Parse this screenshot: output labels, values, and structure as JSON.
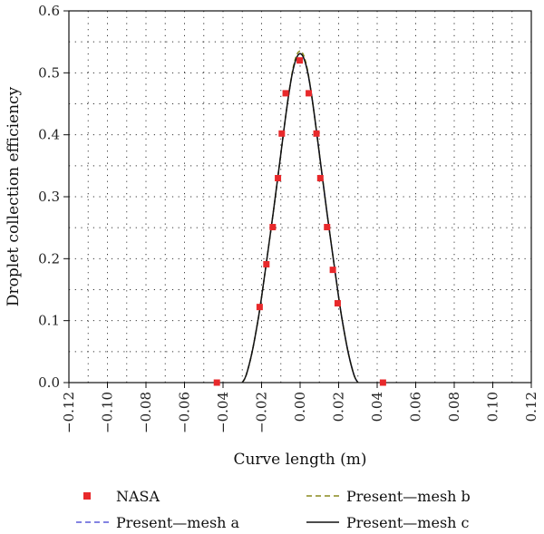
{
  "chart_data": {
    "type": "line",
    "xlabel": "Curve length (m)",
    "ylabel": "Droplet collection efficiency",
    "xlim": [
      -0.12,
      0.12
    ],
    "ylim": [
      0.0,
      0.6
    ],
    "xticks": [
      -0.12,
      -0.1,
      -0.08,
      -0.06,
      -0.04,
      -0.02,
      0.0,
      0.02,
      0.04,
      0.06,
      0.08,
      0.1,
      0.12
    ],
    "xtick_labels": [
      "−0.12",
      "−0.10",
      "−0.08",
      "−0.06",
      "−0.04",
      "−0.02",
      "0.00",
      "0.02",
      "0.04",
      "0.06",
      "0.08",
      "0.10",
      "0.12"
    ],
    "yticks": [
      0.0,
      0.1,
      0.2,
      0.3,
      0.4,
      0.5,
      0.6
    ],
    "ytick_labels": [
      "0.0",
      "0.1",
      "0.2",
      "0.3",
      "0.4",
      "0.5",
      "0.6"
    ],
    "grid": "dotted",
    "series": [
      {
        "name": "NASA",
        "style": "marker",
        "color": "#e8292b",
        "x": [
          -0.0432,
          -0.021,
          -0.0175,
          -0.0142,
          -0.0115,
          -0.0095,
          -0.0075,
          -0.0002,
          0.0045,
          0.0085,
          0.0105,
          0.014,
          0.017,
          0.0195,
          0.043
        ],
        "y": [
          0.0,
          0.122,
          0.191,
          0.251,
          0.33,
          0.402,
          0.467,
          0.52,
          0.467,
          0.402,
          0.33,
          0.251,
          0.182,
          0.128,
          0.0
        ]
      },
      {
        "name": "Present—mesh a",
        "style": "dashed",
        "color": "#5a5ad8",
        "x": [
          -0.03,
          -0.028,
          -0.025,
          -0.022,
          -0.02,
          -0.017,
          -0.014,
          -0.011,
          -0.008,
          -0.006,
          -0.004,
          -0.002,
          0.0,
          0.002,
          0.004,
          0.006,
          0.008,
          0.011,
          0.014,
          0.017,
          0.02,
          0.022,
          0.025,
          0.028,
          0.03
        ],
        "y": [
          0.0,
          0.012,
          0.048,
          0.098,
          0.138,
          0.205,
          0.273,
          0.345,
          0.418,
          0.463,
          0.5,
          0.523,
          0.531,
          0.523,
          0.5,
          0.463,
          0.418,
          0.345,
          0.273,
          0.205,
          0.138,
          0.098,
          0.048,
          0.012,
          0.0
        ]
      },
      {
        "name": "Present—mesh b",
        "style": "dashed",
        "color": "#8a8a1e",
        "x": [
          -0.03,
          -0.028,
          -0.025,
          -0.022,
          -0.02,
          -0.017,
          -0.014,
          -0.011,
          -0.008,
          -0.006,
          -0.004,
          -0.002,
          0.0,
          0.002,
          0.004,
          0.006,
          0.008,
          0.011,
          0.014,
          0.017,
          0.02,
          0.022,
          0.025,
          0.028,
          0.03
        ],
        "y": [
          0.0,
          0.012,
          0.048,
          0.098,
          0.138,
          0.205,
          0.273,
          0.345,
          0.418,
          0.463,
          0.502,
          0.527,
          0.535,
          0.527,
          0.502,
          0.463,
          0.418,
          0.345,
          0.273,
          0.205,
          0.138,
          0.098,
          0.048,
          0.012,
          0.0
        ]
      },
      {
        "name": "Present—mesh c",
        "style": "solid",
        "color": "#111111",
        "x": [
          -0.03,
          -0.028,
          -0.025,
          -0.022,
          -0.02,
          -0.017,
          -0.014,
          -0.011,
          -0.008,
          -0.006,
          -0.004,
          -0.002,
          0.0,
          0.002,
          0.004,
          0.006,
          0.008,
          0.011,
          0.014,
          0.017,
          0.02,
          0.022,
          0.025,
          0.028,
          0.03
        ],
        "y": [
          0.0,
          0.012,
          0.048,
          0.098,
          0.138,
          0.205,
          0.273,
          0.345,
          0.418,
          0.463,
          0.5,
          0.523,
          0.531,
          0.523,
          0.5,
          0.463,
          0.418,
          0.345,
          0.273,
          0.205,
          0.138,
          0.098,
          0.048,
          0.012,
          0.0
        ]
      }
    ],
    "legend_placement": "bottom"
  }
}
